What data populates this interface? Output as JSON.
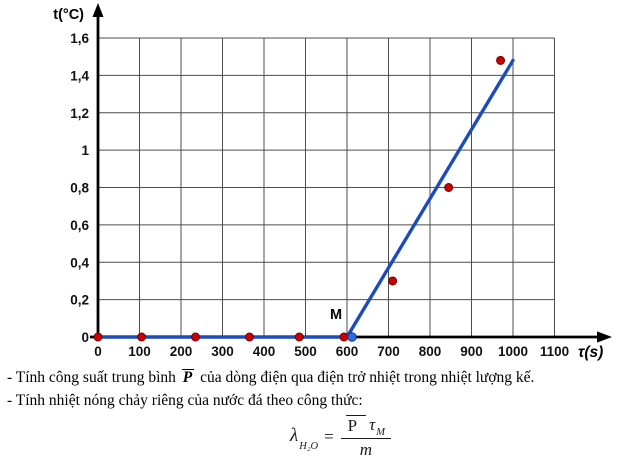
{
  "chart_data": {
    "type": "scatter",
    "title": "",
    "xlabel": "τ(s)",
    "ylabel": "t(°C)",
    "xlim": [
      0,
      1150
    ],
    "ylim": [
      0,
      1.6
    ],
    "grid": true,
    "legend": "none",
    "x_ticks": [
      0,
      100,
      200,
      300,
      400,
      500,
      600,
      700,
      800,
      900,
      1000,
      1100
    ],
    "y_ticks": [
      0,
      0.2,
      0.4,
      0.6,
      0.8,
      1,
      1.2,
      1.4,
      1.6
    ],
    "y_tick_labels": [
      "0",
      "0,2",
      "0,4",
      "0,6",
      "0,8",
      "1",
      "1,2",
      "1,4",
      "1,6"
    ],
    "series": [
      {
        "name": "measured-points",
        "type": "scatter",
        "points": [
          [
            0,
            0
          ],
          [
            105,
            0
          ],
          [
            235,
            0
          ],
          [
            365,
            0
          ],
          [
            485,
            0
          ],
          [
            600,
            0
          ],
          [
            710,
            0.3
          ],
          [
            845,
            0.8
          ],
          [
            970,
            1.48
          ]
        ]
      },
      {
        "name": "fit-line",
        "type": "line",
        "points": [
          [
            0,
            0
          ],
          [
            600,
            0
          ],
          [
            1000,
            1.48
          ]
        ]
      }
    ],
    "annotations": [
      {
        "text": "M",
        "x": 600,
        "y": 0
      }
    ],
    "colors": {
      "line": "#1c4bbc",
      "point": "#cc0000",
      "point_stroke": "#6e0000",
      "m_point": "#2e6ce0",
      "m_point_stroke": "#123a8f",
      "grid": "#4d4d4d",
      "axis": "#000000"
    }
  },
  "caption": {
    "line1_prefix": "- Tính công suất trung bình ",
    "line1_pbar": "P",
    "line1_suffix": " của dòng điện qua điện trở nhiệt trong nhiệt lượng kế.",
    "line2": "- Tính nhiệt nóng chảy riêng của nước đá theo công thức:"
  },
  "formula": {
    "lambda": "λ",
    "lambda_sub": "H₂O",
    "equals": "=",
    "numerator_p": "P",
    "numerator_tau": "τ",
    "numerator_tau_sub": "M",
    "denominator": "m"
  }
}
